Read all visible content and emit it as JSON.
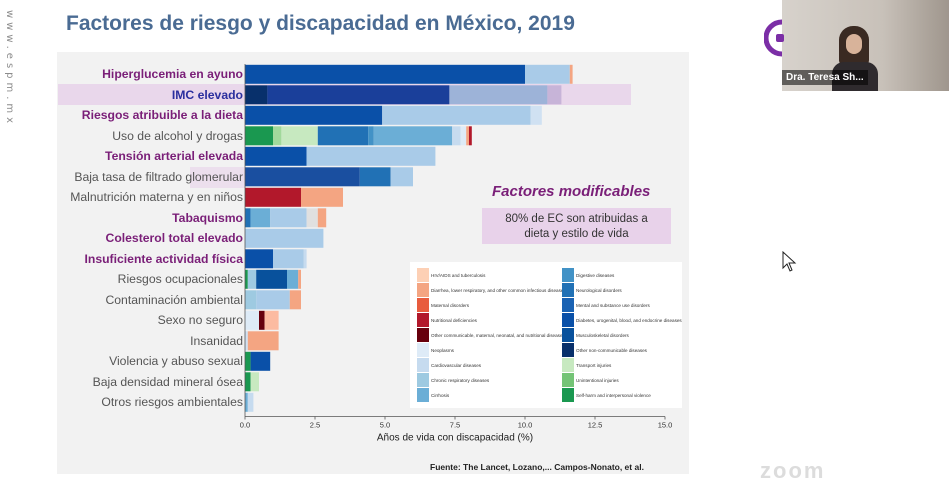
{
  "page": {
    "watermark": "www.espm.mx",
    "title": "Factores de riesgo y discapacidad en México, 2019",
    "modifiable_title": "Factores modificables",
    "modifiable_text_1": "80% de EC son atribuidas a",
    "modifiable_text_2": "dieta y estilo de vida",
    "source": "Fuente: The Lancet, Lozano,... Campos-Nonato, et al.",
    "video_name": "Dra. Teresa Sh...",
    "zoom_text": "zoom"
  },
  "chart_data": {
    "type": "bar",
    "orientation": "horizontal",
    "stacked": true,
    "title": "",
    "xlabel": "Años de vida con discapacidad (%)",
    "ylabel": "",
    "xlim": [
      0,
      15
    ],
    "xticks": [
      "0.0",
      "2.5",
      "5.0",
      "7.5",
      "10.0",
      "12.5",
      "15.0"
    ],
    "categories": [
      {
        "label": "Hiperglucemia en ayuno",
        "bold": true,
        "highlight": false
      },
      {
        "label": "IMC elevado",
        "bold": true,
        "highlight": true
      },
      {
        "label": "Riesgos atribuible a la dieta",
        "bold": true,
        "highlight": false
      },
      {
        "label": "Uso de alcohol y drogas",
        "bold": false,
        "highlight": false
      },
      {
        "label": "Tensión arterial elevada",
        "bold": true,
        "highlight": false
      },
      {
        "label": "Baja tasa de filtrado glomerular",
        "bold": false,
        "highlight": false
      },
      {
        "label": "Malnutrición materna y en niños",
        "bold": false,
        "highlight": false
      },
      {
        "label": "Tabaquismo",
        "bold": true,
        "highlight": false
      },
      {
        "label": "Colesterol total elevado",
        "bold": true,
        "highlight": false
      },
      {
        "label": "Insuficiente actividad física",
        "bold": true,
        "highlight": false
      },
      {
        "label": "Riesgos ocupacionales",
        "bold": false,
        "highlight": false
      },
      {
        "label": "Contaminación ambiental",
        "bold": false,
        "highlight": false
      },
      {
        "label": "Sexo no seguro",
        "bold": false,
        "highlight": false
      },
      {
        "label": "Insanidad",
        "bold": false,
        "highlight": false
      },
      {
        "label": "Violencia y abuso sexual",
        "bold": false,
        "highlight": false
      },
      {
        "label": "Baja densidad mineral ósea",
        "bold": false,
        "highlight": false
      },
      {
        "label": "Otros riesgos ambientales",
        "bold": false,
        "highlight": false
      }
    ],
    "segments": [
      [
        {
          "v": 10.0,
          "c": "#0a50a8"
        },
        {
          "v": 1.6,
          "c": "#a9cbe8"
        },
        {
          "v": 0.1,
          "c": "#f4a582"
        }
      ],
      [
        {
          "v": 0.8,
          "c": "#08306b"
        },
        {
          "v": 6.5,
          "c": "#1a3f9a"
        },
        {
          "v": 3.5,
          "c": "#9db3d8"
        },
        {
          "v": 0.5,
          "c": "#c7b4d8"
        }
      ],
      [
        {
          "v": 4.9,
          "c": "#0a50a8"
        },
        {
          "v": 5.3,
          "c": "#a9cbe8"
        },
        {
          "v": 0.4,
          "c": "#d0e1f2"
        }
      ],
      [
        {
          "v": 1.0,
          "c": "#1a9850"
        },
        {
          "v": 0.3,
          "c": "#a1d99b"
        },
        {
          "v": 1.3,
          "c": "#c7e9c0"
        },
        {
          "v": 1.8,
          "c": "#2171b5"
        },
        {
          "v": 0.2,
          "c": "#4292c6"
        },
        {
          "v": 2.8,
          "c": "#6baed6"
        },
        {
          "v": 0.3,
          "c": "#c6dbef"
        },
        {
          "v": 0.2,
          "c": "#deebf7"
        },
        {
          "v": 0.1,
          "c": "#f4a582"
        },
        {
          "v": 0.1,
          "c": "#b2182b"
        }
      ],
      [
        {
          "v": 2.2,
          "c": "#0a50a8"
        },
        {
          "v": 4.6,
          "c": "#a9cbe8"
        }
      ],
      [
        {
          "v": 4.1,
          "c": "#1a4fa0"
        },
        {
          "v": 1.1,
          "c": "#2171b5"
        },
        {
          "v": 0.8,
          "c": "#a9cbe8"
        }
      ],
      [
        {
          "v": 2.0,
          "c": "#b2182b"
        },
        {
          "v": 1.5,
          "c": "#f4a582"
        }
      ],
      [
        {
          "v": 0.2,
          "c": "#2171b5"
        },
        {
          "v": 0.7,
          "c": "#6baed6"
        },
        {
          "v": 1.3,
          "c": "#a9cbe8"
        },
        {
          "v": 0.4,
          "c": "#e0e0e0"
        },
        {
          "v": 0.3,
          "c": "#f4a582"
        }
      ],
      [
        {
          "v": 2.8,
          "c": "#a9cbe8"
        }
      ],
      [
        {
          "v": 1.0,
          "c": "#0a50a8"
        },
        {
          "v": 1.1,
          "c": "#a9cbe8"
        },
        {
          "v": 0.1,
          "c": "#c6dbef"
        }
      ],
      [
        {
          "v": 0.1,
          "c": "#1a9850"
        },
        {
          "v": 0.3,
          "c": "#9ecae1"
        },
        {
          "v": 1.1,
          "c": "#08519c"
        },
        {
          "v": 0.4,
          "c": "#6baed6"
        },
        {
          "v": 0.1,
          "c": "#f4a582"
        }
      ],
      [
        {
          "v": 0.4,
          "c": "#9ecae1"
        },
        {
          "v": 1.2,
          "c": "#a9cbe8"
        },
        {
          "v": 0.4,
          "c": "#f4a582"
        }
      ],
      [
        {
          "v": 0.5,
          "c": "#deebf7"
        },
        {
          "v": 0.2,
          "c": "#67000d"
        },
        {
          "v": 0.5,
          "c": "#fcbba1"
        }
      ],
      [
        {
          "v": 0.1,
          "c": "#d0e1f2"
        },
        {
          "v": 1.1,
          "c": "#f4a582"
        }
      ],
      [
        {
          "v": 0.2,
          "c": "#1a9850"
        },
        {
          "v": 0.7,
          "c": "#0a50a8"
        }
      ],
      [
        {
          "v": 0.2,
          "c": "#1a9850"
        },
        {
          "v": 0.3,
          "c": "#c7e9c0"
        }
      ],
      [
        {
          "v": 0.1,
          "c": "#6baed6"
        },
        {
          "v": 0.2,
          "c": "#c6dbef"
        }
      ]
    ],
    "legend_position": "bottom-right",
    "legend": [
      {
        "name": "HIV/AIDS and tuberculosis",
        "color": "#fdd0b5"
      },
      {
        "name": "Diarrhea, lower respiratory, and other common infectious diseases",
        "color": "#f4a582"
      },
      {
        "name": "Maternal disorders",
        "color": "#e85c3e"
      },
      {
        "name": "Nutritional deficiencies",
        "color": "#b2182b"
      },
      {
        "name": "Other communicable, maternal, neonatal, and nutritional diseases",
        "color": "#67000d"
      },
      {
        "name": "Neoplasms",
        "color": "#deebf7"
      },
      {
        "name": "Cardiovascular diseases",
        "color": "#c6dbef"
      },
      {
        "name": "Chronic respiratory diseases",
        "color": "#9ecae1"
      },
      {
        "name": "Cirrhosis",
        "color": "#6baed6"
      },
      {
        "name": "Digestive diseases",
        "color": "#4292c6"
      },
      {
        "name": "Neurological disorders",
        "color": "#2171b5"
      },
      {
        "name": "Mental and substance use disorders",
        "color": "#1a62b3"
      },
      {
        "name": "Diabetes, urogenital, blood, and endocrine diseases",
        "color": "#0a50a8"
      },
      {
        "name": "Musculoskeletal disorders",
        "color": "#08519c"
      },
      {
        "name": "Other non-communicable diseases",
        "color": "#08306b"
      },
      {
        "name": "Transport injuries",
        "color": "#c7e9c0"
      },
      {
        "name": "Unintentional injuries",
        "color": "#74c476"
      },
      {
        "name": "Self-harm and interpersonal violence",
        "color": "#1a9850"
      }
    ]
  }
}
